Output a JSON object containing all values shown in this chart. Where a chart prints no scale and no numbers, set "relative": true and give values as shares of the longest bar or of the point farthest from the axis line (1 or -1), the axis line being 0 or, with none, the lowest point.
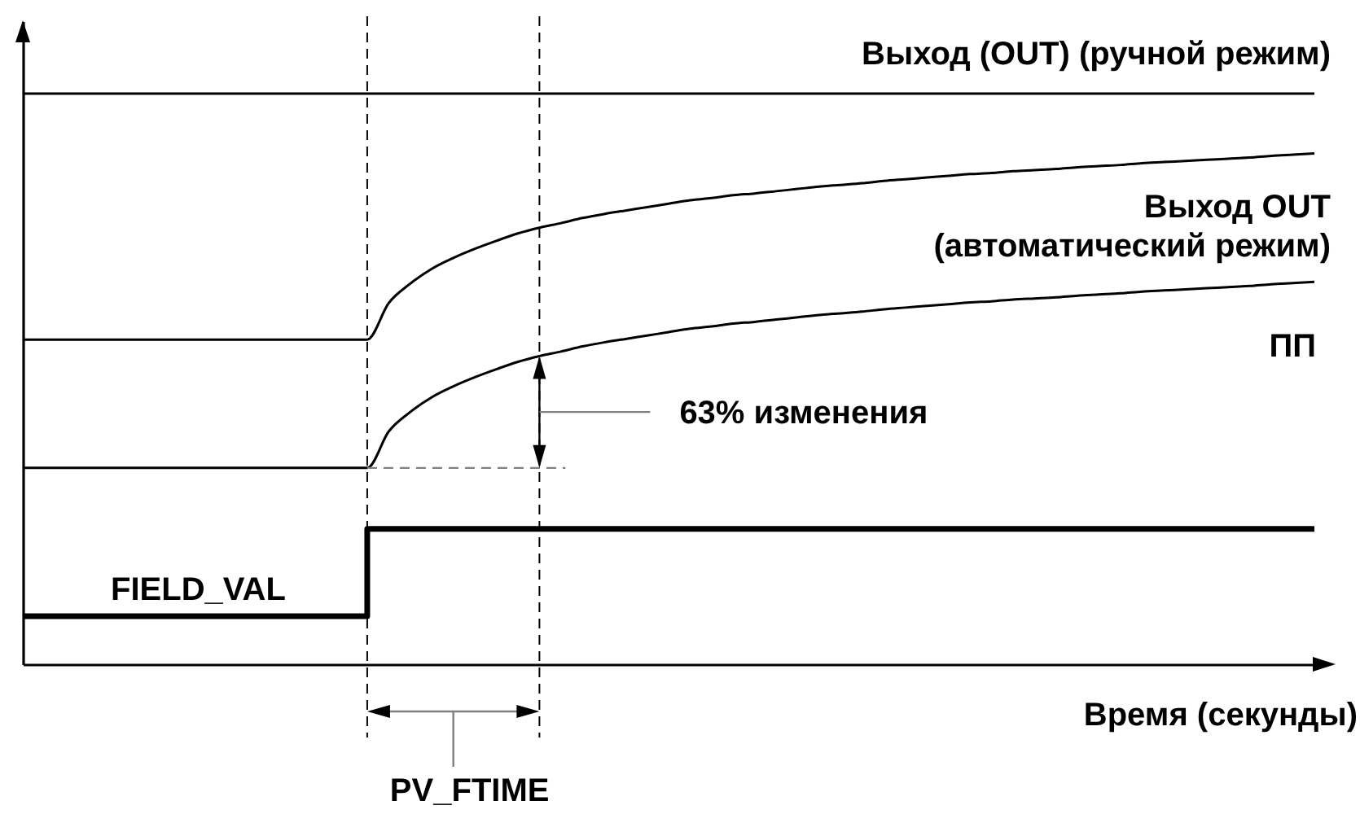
{
  "chart_data": {
    "type": "line",
    "relative": true,
    "xlabel": "Время (секунды)",
    "categories": [
      null,
      null,
      null,
      null,
      null,
      null,
      null,
      null,
      null,
      null,
      null,
      null,
      null,
      null,
      null,
      null,
      null,
      null,
      null,
      null,
      null,
      null,
      null,
      null,
      null,
      null,
      null,
      null,
      null,
      null,
      null,
      null,
      null,
      null,
      null,
      null,
      null,
      null,
      null,
      null,
      null,
      null,
      null,
      null,
      null,
      null,
      null,
      null,
      null,
      null,
      null,
      null,
      null,
      null,
      null,
      null,
      null,
      null,
      null,
      null,
      null
    ],
    "series": [
      {
        "name": "Выход (OUT) (ручной режим)",
        "color": "#000000",
        "values": [
          1,
          1,
          1,
          1,
          1,
          1,
          1,
          1,
          1,
          1,
          1,
          1,
          1,
          1,
          1,
          1,
          1,
          1,
          1,
          1,
          1,
          1,
          1,
          1,
          1,
          1,
          1,
          1,
          1,
          1,
          1,
          1,
          1,
          1,
          1,
          1,
          1,
          1,
          1,
          1,
          1,
          1,
          1,
          1,
          1,
          1,
          1,
          1,
          1,
          1,
          1,
          1,
          1,
          1,
          1,
          1,
          1,
          1,
          1,
          1,
          1
        ]
      },
      {
        "name": "Выход OUT (автоматический режим)",
        "color": "#000000",
        "values": [
          0.569,
          0.569,
          0.569,
          0.569,
          0.569,
          0.569,
          0.569,
          0.569,
          0.569,
          0.569,
          0.569,
          0.569,
          0.569,
          0.569,
          0.569,
          0.569,
          0.569,
          0.633,
          0.667,
          0.693,
          0.712,
          0.728,
          0.742,
          0.755,
          0.765,
          0.773,
          0.782,
          0.789,
          0.795,
          0.801,
          0.807,
          0.813,
          0.817,
          0.822,
          0.825,
          0.829,
          0.833,
          0.837,
          0.84,
          0.843,
          0.847,
          0.85,
          0.853,
          0.856,
          0.859,
          0.861,
          0.864,
          0.866,
          0.868,
          0.871,
          0.873,
          0.875,
          0.878,
          0.88,
          0.882,
          0.884,
          0.886,
          0.888,
          0.891,
          0.893,
          0.895
        ]
      },
      {
        "name": "ПП",
        "color": "#000000",
        "values": [
          0.344,
          0.344,
          0.344,
          0.344,
          0.344,
          0.344,
          0.344,
          0.344,
          0.344,
          0.344,
          0.344,
          0.344,
          0.344,
          0.344,
          0.344,
          0.344,
          0.344,
          0.408,
          0.442,
          0.468,
          0.487,
          0.503,
          0.517,
          0.53,
          0.54,
          0.548,
          0.557,
          0.564,
          0.57,
          0.576,
          0.582,
          0.588,
          0.592,
          0.597,
          0.6,
          0.604,
          0.608,
          0.612,
          0.615,
          0.618,
          0.622,
          0.625,
          0.628,
          0.631,
          0.634,
          0.636,
          0.639,
          0.641,
          0.643,
          0.646,
          0.648,
          0.65,
          0.653,
          0.655,
          0.657,
          0.659,
          0.661,
          0.663,
          0.666,
          0.668,
          0.67
        ]
      },
      {
        "name": "FIELD_VAL",
        "type": "step",
        "color": "#000000",
        "values": [
          0.084,
          0.084,
          0.084,
          0.084,
          0.084,
          0.084,
          0.084,
          0.084,
          0.084,
          0.084,
          0.084,
          0.084,
          0.084,
          0.084,
          0.084,
          0.084,
          0.237,
          0.237,
          0.237,
          0.237,
          0.237,
          0.237,
          0.237,
          0.237,
          0.237,
          0.237,
          0.237,
          0.237,
          0.237,
          0.237,
          0.237,
          0.237,
          0.237,
          0.237,
          0.237,
          0.237,
          0.237,
          0.237,
          0.237,
          0.237,
          0.237,
          0.237,
          0.237,
          0.237,
          0.237,
          0.237,
          0.237,
          0.237,
          0.237,
          0.237,
          0.237,
          0.237,
          0.237,
          0.237,
          0.237,
          0.237,
          0.237,
          0.237,
          0.237,
          0.237,
          0.237
        ]
      }
    ],
    "annotations": [
      "63% изменения",
      "PV_FTIME"
    ]
  }
}
